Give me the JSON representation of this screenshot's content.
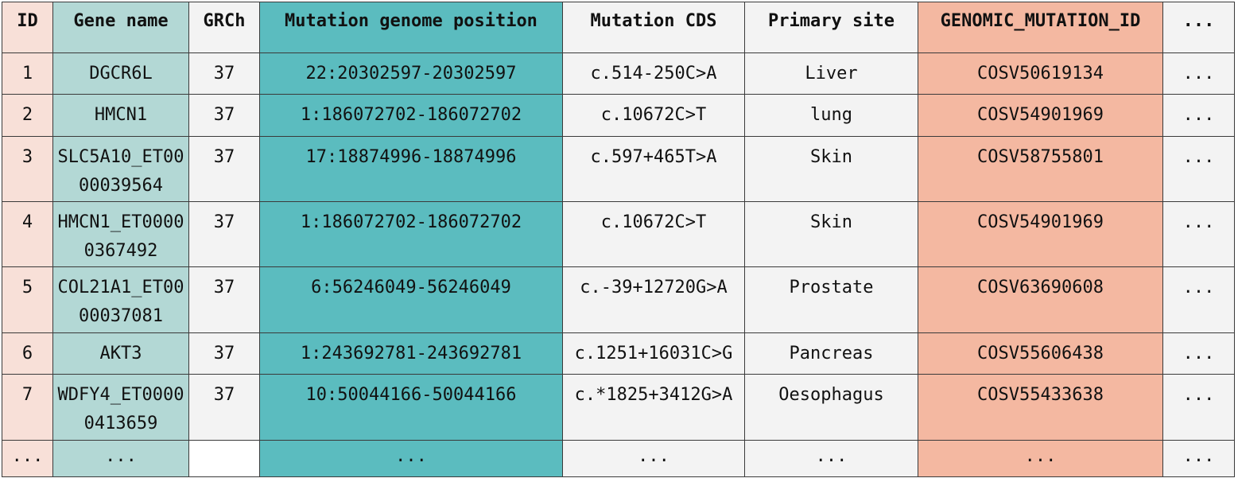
{
  "table": {
    "headers": [
      "ID",
      "Gene name",
      "GRCh",
      "Mutation genome position",
      "Mutation CDS",
      "Primary site",
      "GENOMIC_MUTATION_ID",
      "..."
    ],
    "rows": [
      {
        "id": "1",
        "gene": "DGCR6L",
        "grch": "37",
        "position": "22:20302597-20302597",
        "cds": "c.514-250C>A",
        "site": "Liver",
        "gmid": "COSV50619134",
        "more": "..."
      },
      {
        "id": "2",
        "gene": "HMCN1",
        "grch": "37",
        "position": "1:186072702-186072702",
        "cds": "c.10672C>T",
        "site": "lung",
        "gmid": "COSV54901969",
        "more": "..."
      },
      {
        "id": "3",
        "gene": "SLC5A10_ET0000039564",
        "grch": "37",
        "position": "17:18874996-18874996",
        "cds": "c.597+465T>A",
        "site": "Skin",
        "gmid": "COSV58755801",
        "more": "..."
      },
      {
        "id": "4",
        "gene": "HMCN1_ET00000367492",
        "grch": "37",
        "position": "1:186072702-186072702",
        "cds": "c.10672C>T",
        "site": "Skin",
        "gmid": "COSV54901969",
        "more": "..."
      },
      {
        "id": "5",
        "gene": "COL21A1_ET0000037081",
        "grch": "37",
        "position": "6:56246049-56246049",
        "cds": "c.-39+12720G>A",
        "site": "Prostate",
        "gmid": "COSV63690608",
        "more": "..."
      },
      {
        "id": "6",
        "gene": "AKT3",
        "grch": "37",
        "position": "1:243692781-243692781",
        "cds": "c.1251+16031C>G",
        "site": "Pancreas",
        "gmid": "COSV55606438",
        "more": "..."
      },
      {
        "id": "7",
        "gene": "WDFY4_ET00000413659",
        "grch": "37",
        "position": "10:50044166-50044166",
        "cds": "c.*1825+3412G>A",
        "site": "Oesophagus",
        "gmid": "COSV55433638",
        "more": "..."
      }
    ],
    "last_row": {
      "id": "...",
      "gene": "...",
      "grch": "",
      "position": "...",
      "cds": "...",
      "site": "...",
      "gmid": "...",
      "more": "..."
    },
    "colors": {
      "id": "#f8e0d8",
      "gene": "#b3d8d5",
      "position": "#5bbcbf",
      "gmid": "#f4b8a1",
      "other": "#f3f3f3"
    }
  }
}
